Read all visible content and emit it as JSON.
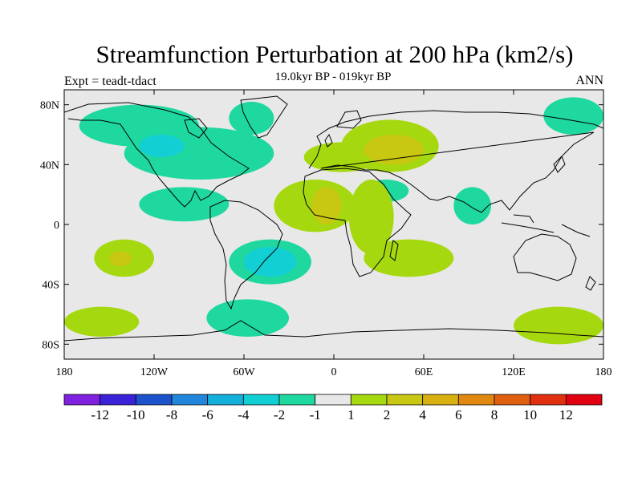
{
  "header": {
    "title": "Streamfunction Perturbation at 200 hPa (km2/s)",
    "subtitle": "19.0kyr BP - 019kyr BP",
    "left_label": "Expt = teadt-tdact",
    "right_label": "ANN"
  },
  "chart_data": {
    "type": "heatmap",
    "variable": "Streamfunction perturbation",
    "level": "200 hPa",
    "units": "km2/s",
    "x_axis": {
      "range": [
        -180,
        180
      ],
      "ticks": [
        -180,
        -120,
        -60,
        0,
        60,
        120,
        180
      ],
      "tick_labels": [
        "180",
        "120W",
        "60W",
        "0",
        "60E",
        "120E",
        "180"
      ]
    },
    "y_axis": {
      "range": [
        -90,
        90
      ],
      "ticks": [
        80,
        40,
        0,
        -40,
        -80
      ],
      "tick_labels": [
        "80N",
        "40N",
        "0",
        "40S",
        "80S"
      ]
    },
    "colorbar": {
      "bounds": [
        -14,
        -12,
        -10,
        -8,
        -6,
        -4,
        -2,
        -1,
        1,
        2,
        4,
        6,
        8,
        10,
        12,
        14
      ],
      "labels": [
        "-12",
        "-10",
        "-8",
        "-6",
        "-4",
        "-2",
        "-1",
        "1",
        "2",
        "4",
        "6",
        "8",
        "10",
        "12"
      ],
      "colors": [
        "#8020e0",
        "#3a22d8",
        "#1c52cc",
        "#1f86dc",
        "#13b0dc",
        "#12cfd4",
        "#1fd8a0",
        "#e8e8e8",
        "#a6d810",
        "#c8c812",
        "#d8b010",
        "#e08810",
        "#e06010",
        "#e03010",
        "#e00010"
      ]
    },
    "regions": [
      {
        "level": "-2 to -1",
        "lon": [
          -170,
          -90
        ],
        "lat": [
          52,
          80
        ]
      },
      {
        "level": "-2 to -1",
        "lon": [
          -70,
          -40
        ],
        "lat": [
          60,
          82
        ]
      },
      {
        "level": "-2 to -1",
        "lon": [
          -140,
          -40
        ],
        "lat": [
          30,
          65
        ]
      },
      {
        "level": "-4 to -2",
        "lon": [
          -130,
          -100
        ],
        "lat": [
          45,
          60
        ]
      },
      {
        "level": "-2 to -1",
        "lon": [
          -130,
          -70
        ],
        "lat": [
          2,
          25
        ]
      },
      {
        "level": "-2 to -1",
        "lon": [
          -70,
          -15
        ],
        "lat": [
          -40,
          -10
        ]
      },
      {
        "level": "-4 to -2",
        "lon": [
          -60,
          -25
        ],
        "lat": [
          -35,
          -15
        ]
      },
      {
        "level": "-2 to -1",
        "lon": [
          -85,
          -30
        ],
        "lat": [
          -75,
          -50
        ]
      },
      {
        "level": "-2 to -1",
        "lon": [
          20,
          50
        ],
        "lat": [
          15,
          30
        ]
      },
      {
        "level": "-2 to -1",
        "lon": [
          80,
          105
        ],
        "lat": [
          0,
          25
        ]
      },
      {
        "level": "-2 to -1",
        "lon": [
          140,
          180
        ],
        "lat": [
          60,
          85
        ]
      },
      {
        "level": "1 to 2",
        "lon": [
          -160,
          -120
        ],
        "lat": [
          -35,
          -10
        ]
      },
      {
        "level": "2 to 4",
        "lon": [
          -150,
          -135
        ],
        "lat": [
          -28,
          -18
        ]
      },
      {
        "level": "1 to 2",
        "lon": [
          -40,
          15
        ],
        "lat": [
          -5,
          30
        ]
      },
      {
        "level": "2 to 4",
        "lon": [
          -15,
          5
        ],
        "lat": [
          0,
          25
        ]
      },
      {
        "level": "1 to 2",
        "lon": [
          -20,
          30
        ],
        "lat": [
          35,
          55
        ]
      },
      {
        "level": "1 to 2",
        "lon": [
          5,
          70
        ],
        "lat": [
          35,
          70
        ]
      },
      {
        "level": "2 to 4",
        "lon": [
          20,
          60
        ],
        "lat": [
          40,
          60
        ]
      },
      {
        "level": "1 to 2",
        "lon": [
          10,
          40
        ],
        "lat": [
          -20,
          30
        ]
      },
      {
        "level": "1 to 2",
        "lon": [
          20,
          80
        ],
        "lat": [
          -35,
          -10
        ]
      },
      {
        "level": "1 to 2",
        "lon": [
          -180,
          -130
        ],
        "lat": [
          -75,
          -55
        ]
      },
      {
        "level": "1 to 2",
        "lon": [
          120,
          180
        ],
        "lat": [
          -80,
          -55
        ]
      }
    ]
  }
}
